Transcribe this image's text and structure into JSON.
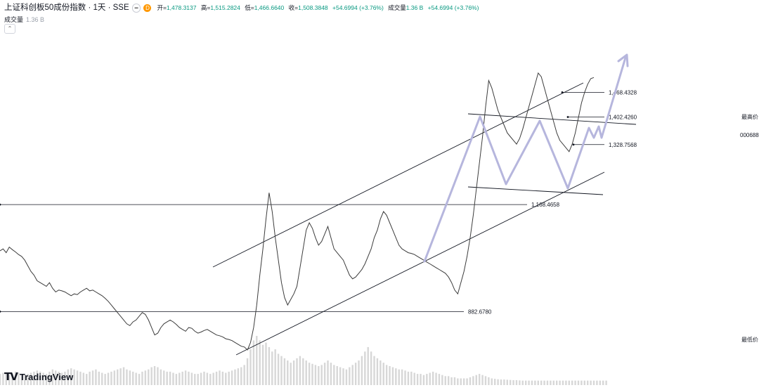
{
  "header": {
    "title": "上证科创板50成份指数 · 1天 · SSE",
    "badge_icon": "eye-icon",
    "badge_letter": "D",
    "ohlc": [
      {
        "label": "开=",
        "value": "1,478.3137"
      },
      {
        "label": "高=",
        "value": "1,515.2824"
      },
      {
        "label": "低=",
        "value": "1,466.6640"
      },
      {
        "label": "收=",
        "value": "1,508.3848"
      },
      {
        "label": "",
        "value": "+54.6994 (+3.76%)"
      },
      {
        "label": "成交量",
        "value": "1.36 B"
      },
      {
        "label": "",
        "value": "+54.6994 (+3.76%)"
      }
    ]
  },
  "volume_legend": {
    "label": "成交量",
    "value": "1.36 B"
  },
  "collapse_icon": "chevron-up-icon",
  "axis": {
    "high_label": "最高价",
    "low_label": "最低价",
    "code_label": "000688"
  },
  "logo": {
    "mark": "TV",
    "text": "TradingView"
  },
  "colors": {
    "price": "#3c3c3c",
    "line": "#131722",
    "arrow": "#b6b6dd",
    "volume": "#c9c9c9"
  },
  "chart_data": {
    "type": "line",
    "series": [
      {
        "values": [
          1045,
          1050,
          1040,
          1055,
          1048,
          1042,
          1035,
          1030,
          1020,
          1005,
          990,
          980,
          965,
          960,
          955,
          950,
          960,
          945,
          935,
          940,
          938,
          935,
          930,
          925,
          930,
          928,
          935,
          940,
          945,
          938,
          940,
          935,
          930,
          925,
          918,
          910,
          900,
          890,
          880,
          870,
          860,
          850,
          845,
          855,
          860,
          870,
          880,
          875,
          860,
          840,
          820,
          825,
          840,
          850,
          855,
          860,
          855,
          848,
          840,
          835,
          830,
          840,
          838,
          830,
          825,
          828,
          832,
          835,
          830,
          825,
          820,
          818,
          815,
          810,
          808,
          805,
          800,
          795,
          790,
          788,
          780,
          800,
          840,
          900,
          980,
          1050,
          1130,
          1200,
          1150,
          1080,
          1020,
          960,
          920,
          900,
          915,
          930,
          950,
          1000,
          1050,
          1100,
          1120,
          1105,
          1080,
          1060,
          1070,
          1090,
          1110,
          1080,
          1050,
          1040,
          1030,
          1020,
          1000,
          980,
          970,
          975,
          985,
          995,
          1010,
          1030,
          1050,
          1080,
          1100,
          1130,
          1150,
          1140,
          1120,
          1100,
          1080,
          1060,
          1050,
          1045,
          1040,
          1038,
          1035,
          1030,
          1025,
          1020,
          1015,
          1010,
          1005,
          1000,
          995,
          990,
          985,
          975,
          960,
          940,
          930,
          960,
          990,
          1030,
          1080,
          1140,
          1210,
          1280,
          1350,
          1430,
          1500,
          1480,
          1450,
          1420,
          1400,
          1380,
          1360,
          1350,
          1340,
          1330,
          1345,
          1370,
          1400,
          1430,
          1460,
          1490,
          1520,
          1510,
          1480,
          1450,
          1420,
          1390,
          1360,
          1340,
          1330,
          1320,
          1310,
          1330,
          1360,
          1400,
          1440,
          1468,
          1490,
          1505,
          1508
        ]
      }
    ],
    "ylim": [
      720,
      1640
    ],
    "horizontal_levels": [
      {
        "value": 1468.4328,
        "label": "1,468.4328"
      },
      {
        "value": 1402.426,
        "label": "1,402.4260"
      },
      {
        "value": 1328.7568,
        "label": "1,328.7568"
      },
      {
        "value": 1168.4658,
        "label": "1,168.4658"
      },
      {
        "value": 882.678,
        "label": "882.6780"
      }
    ],
    "volume": [
      0.5,
      0.55,
      0.5,
      0.45,
      0.5,
      0.6,
      0.55,
      0.5,
      0.45,
      0.5,
      0.55,
      0.6,
      0.65,
      0.6,
      0.55,
      0.5,
      0.6,
      0.7,
      0.65,
      0.6,
      0.55,
      0.6,
      0.7,
      0.75,
      0.7,
      0.65,
      0.6,
      0.55,
      0.5,
      0.6,
      0.65,
      0.7,
      0.6,
      0.55,
      0.5,
      0.55,
      0.6,
      0.65,
      0.7,
      0.75,
      0.8,
      0.7,
      0.65,
      0.6,
      0.55,
      0.5,
      0.6,
      0.65,
      0.7,
      0.8,
      0.85,
      0.8,
      0.7,
      0.65,
      0.6,
      0.6,
      0.55,
      0.5,
      0.55,
      0.6,
      0.65,
      0.6,
      0.55,
      0.5,
      0.5,
      0.55,
      0.6,
      0.55,
      0.5,
      0.55,
      0.6,
      0.65,
      0.6,
      0.55,
      0.6,
      0.65,
      0.7,
      0.75,
      0.8,
      0.9,
      1.2,
      1.6,
      2.0,
      2.2,
      2.0,
      1.8,
      1.9,
      1.7,
      1.5,
      1.6,
      1.4,
      1.3,
      1.2,
      1.1,
      1.0,
      1.1,
      1.2,
      1.3,
      1.2,
      1.1,
      1.0,
      0.95,
      0.9,
      0.85,
      0.9,
      1.0,
      1.1,
      1.0,
      0.9,
      0.85,
      0.8,
      0.75,
      0.7,
      0.8,
      0.9,
      1.0,
      1.1,
      1.3,
      1.5,
      1.7,
      1.5,
      1.3,
      1.2,
      1.1,
      1.0,
      0.9,
      0.85,
      0.8,
      0.75,
      0.7,
      0.7,
      0.65,
      0.6,
      0.6,
      0.55,
      0.5,
      0.5,
      0.45,
      0.5,
      0.55,
      0.6,
      0.55,
      0.5,
      0.45,
      0.4,
      0.4,
      0.35,
      0.35,
      0.3,
      0.3,
      0.3,
      0.3,
      0.35,
      0.4,
      0.45,
      0.5,
      0.45,
      0.4,
      0.35,
      0.3,
      0.28,
      0.26,
      0.25,
      0.25,
      0.24,
      0.23,
      0.22,
      0.22,
      0.21,
      0.2,
      0.2,
      0.2,
      0.2,
      0.2,
      0.2,
      0.2,
      0.2,
      0.2,
      0.2,
      0.2,
      0.2,
      0.2,
      0.2,
      0.2,
      0.2,
      0.2,
      0.2,
      0.2,
      0.2,
      0.2,
      0.2,
      0.2,
      0.2,
      0.2,
      0.2,
      0.2,
      0.2
    ]
  }
}
